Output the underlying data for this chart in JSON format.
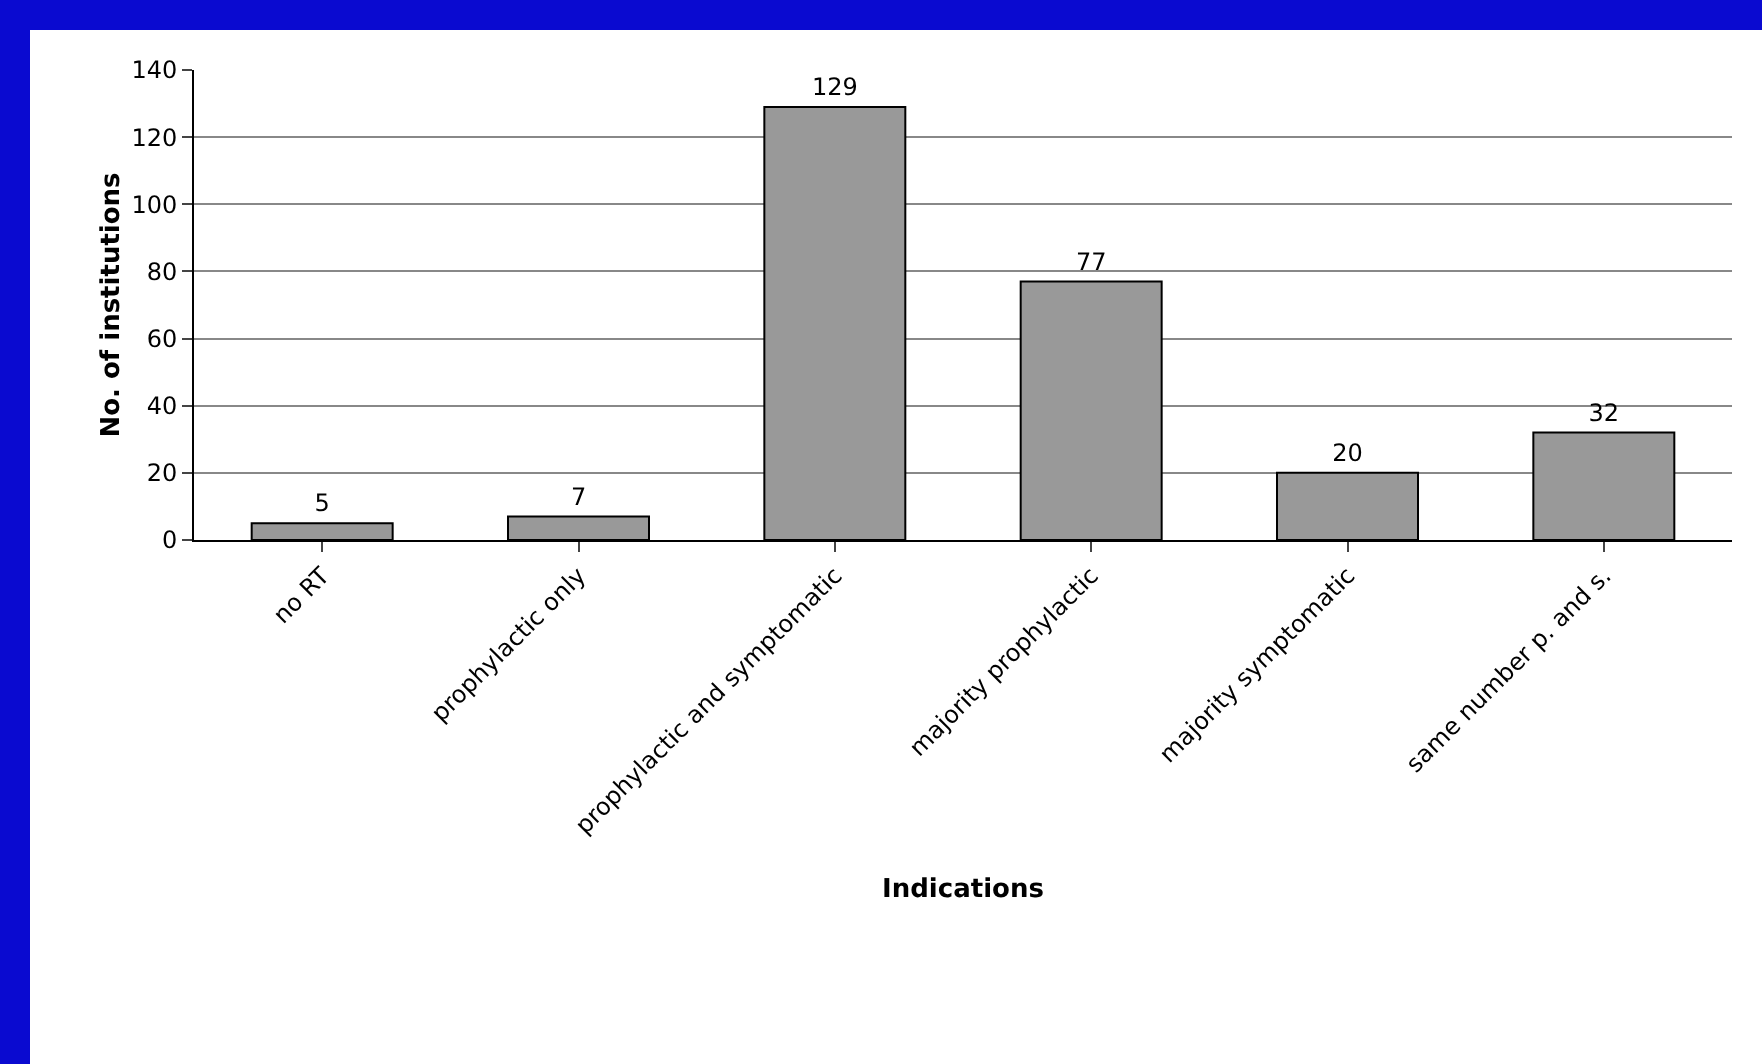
{
  "chart_data": {
    "type": "bar",
    "xlabel": "Indications",
    "ylabel": "No. of institutions",
    "categories": [
      "no RT",
      "prophylactic only",
      "prophylactic and symptomatic",
      "majority prophylactic",
      "majority symptomatic",
      "same number p. and s."
    ],
    "values": [
      5,
      7,
      129,
      77,
      20,
      32
    ],
    "color": "#999999",
    "ylim": [
      0,
      140
    ],
    "yticks": [
      0,
      20,
      40,
      60,
      80,
      100,
      120,
      140
    ],
    "grid": "y",
    "data_labels": true
  }
}
